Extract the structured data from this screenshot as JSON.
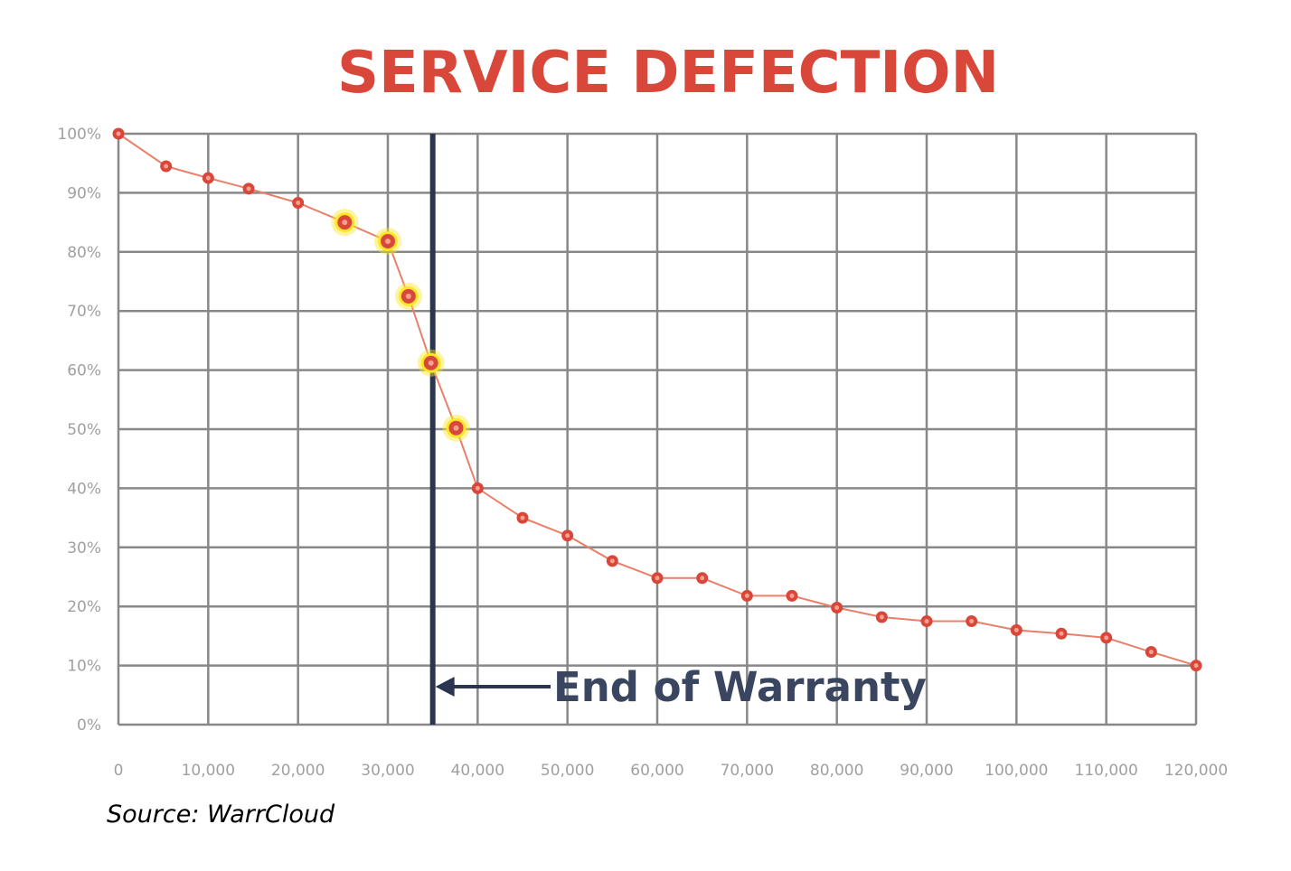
{
  "title": "SERVICE DEFECTION",
  "source": "Source: WarrCloud",
  "annotation": {
    "label": "End of Warranty",
    "x": 35000
  },
  "colors": {
    "title": "#d9473a",
    "grid": "#888888",
    "axis_labels": "#a0a0a0",
    "line": "#e8806a",
    "marker": "#d9473a",
    "highlight": "#fbe62a",
    "warranty_line": "#2a3550",
    "annotation": "#3a4560"
  },
  "chart_data": {
    "type": "line",
    "title": "SERVICE DEFECTION",
    "xlabel": "",
    "ylabel": "",
    "xlim": [
      0,
      120000
    ],
    "ylim": [
      0,
      100
    ],
    "grid": true,
    "x_ticks": [
      "0",
      "10,000",
      "20,000",
      "30,000",
      "40,000",
      "50,000",
      "60,000",
      "70,000",
      "80,000",
      "90,000",
      "100,000",
      "110,000",
      "120,000"
    ],
    "y_ticks": [
      "0%",
      "10%",
      "20%",
      "30%",
      "40%",
      "50%",
      "60%",
      "70%",
      "80%",
      "90%",
      "100%"
    ],
    "series": [
      {
        "points": [
          {
            "x": 0,
            "y": 100
          },
          {
            "x": 5300,
            "y": 94.5
          },
          {
            "x": 10000,
            "y": 92.5
          },
          {
            "x": 14500,
            "y": 90.7
          },
          {
            "x": 20000,
            "y": 88.3
          },
          {
            "x": 25200,
            "y": 85,
            "highlight": true
          },
          {
            "x": 30000,
            "y": 81.8,
            "highlight": true
          },
          {
            "x": 32300,
            "y": 72.5,
            "highlight": true
          },
          {
            "x": 34800,
            "y": 61.2,
            "highlight": true
          },
          {
            "x": 37600,
            "y": 50.2,
            "highlight": true
          },
          {
            "x": 40000,
            "y": 40
          },
          {
            "x": 45000,
            "y": 35
          },
          {
            "x": 50000,
            "y": 32
          },
          {
            "x": 55000,
            "y": 27.7
          },
          {
            "x": 60000,
            "y": 24.8
          },
          {
            "x": 65000,
            "y": 24.8
          },
          {
            "x": 70000,
            "y": 21.8
          },
          {
            "x": 75000,
            "y": 21.8
          },
          {
            "x": 80000,
            "y": 19.8
          },
          {
            "x": 85000,
            "y": 18.2
          },
          {
            "x": 90000,
            "y": 17.5
          },
          {
            "x": 95000,
            "y": 17.5
          },
          {
            "x": 100000,
            "y": 16
          },
          {
            "x": 105000,
            "y": 15.4
          },
          {
            "x": 110000,
            "y": 14.7
          },
          {
            "x": 115000,
            "y": 12.3
          },
          {
            "x": 120000,
            "y": 10
          }
        ]
      }
    ]
  }
}
